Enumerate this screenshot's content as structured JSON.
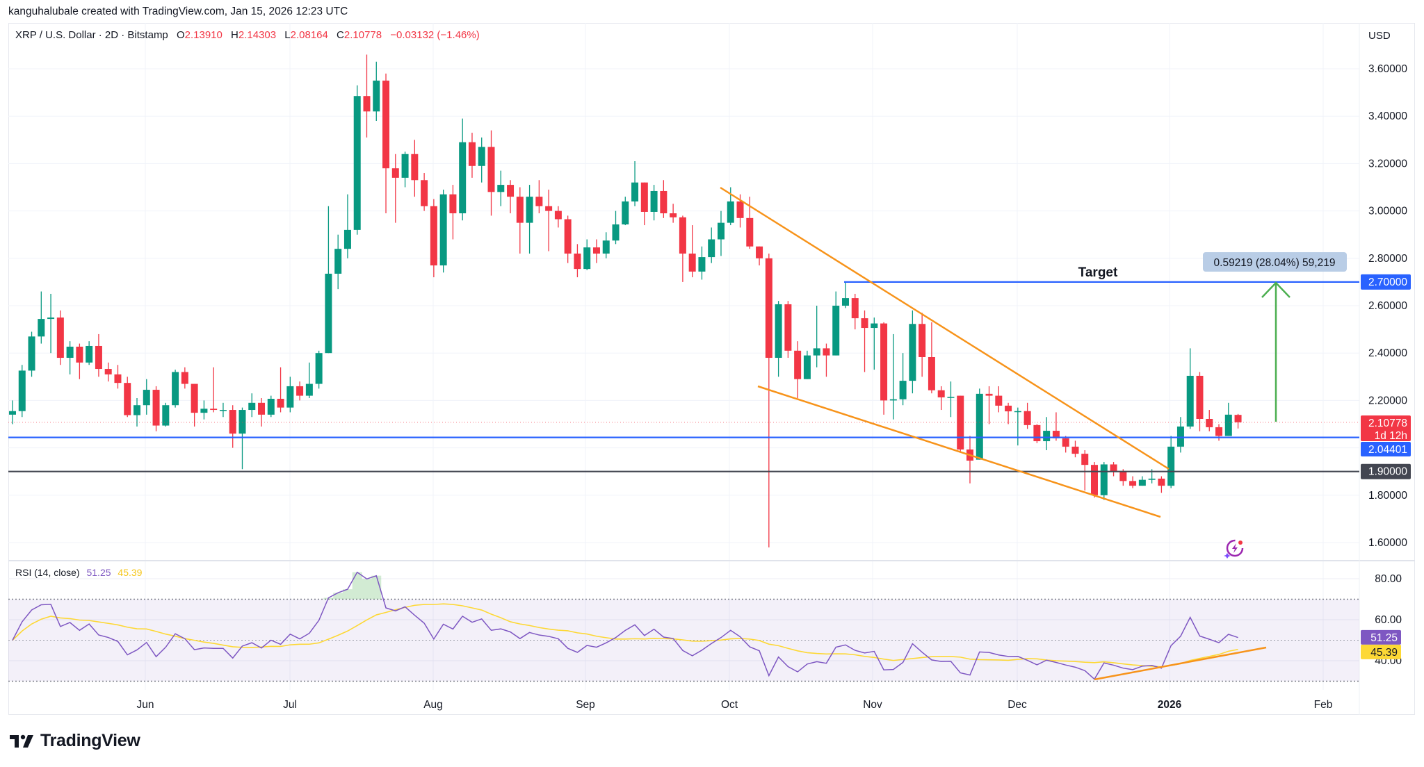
{
  "header": {
    "attribution": "kanguhalubale created with TradingView.com, Jan 15, 2026 12:23 UTC"
  },
  "legend": {
    "symbol": "XRP / U.S. Dollar · 2D · Bitstamp",
    "o_label": "O",
    "o": "2.13910",
    "h_label": "H",
    "h": "2.14303",
    "l_label": "L",
    "l": "2.08164",
    "c_label": "C",
    "c": "2.10778",
    "change": "−0.03132 (−1.46%)"
  },
  "currency": "USD",
  "price_axis": {
    "ticks": [
      "3.60000",
      "3.40000",
      "3.20000",
      "3.00000",
      "2.80000",
      "2.60000",
      "2.40000",
      "2.20000",
      "1.80000",
      "1.60000"
    ]
  },
  "price_tags": {
    "target": {
      "value": "2.70000",
      "color": "#2962ff"
    },
    "last": {
      "value": "2.10778",
      "countdown": "1d 12h",
      "color": "#f23645"
    },
    "support": {
      "value": "2.04401",
      "color": "#2962ff"
    },
    "floor": {
      "value": "1.90000",
      "color": "#434651"
    }
  },
  "annotations": {
    "target_label": "Target",
    "measure_label": "0.59219 (28.04%) 59,219",
    "trendline_color": "#f7931a",
    "arrow_color": "#4caf50"
  },
  "rsi": {
    "label": "RSI (14, close)",
    "value": "51.25",
    "ma_value": "45.39",
    "ticks": [
      "80.00",
      "60.00",
      "40.00"
    ],
    "line_color": "#7e57c2",
    "ma_color": "#fdd835"
  },
  "time_axis": {
    "labels": [
      "Jun",
      "Jul",
      "Aug",
      "Sep",
      "Oct",
      "Nov",
      "Dec",
      "2026",
      "Feb"
    ]
  },
  "logo": {
    "text": "TradingView"
  },
  "colors": {
    "up": "#089981",
    "down": "#f23645"
  },
  "chart_data": {
    "type": "candlestick",
    "interval": "2D",
    "ylim": [
      1.5,
      3.7
    ],
    "ohlc": [
      [
        2.14,
        2.2,
        2.1,
        2.155
      ],
      [
        2.155,
        2.35,
        2.13,
        2.326
      ],
      [
        2.326,
        2.49,
        2.3,
        2.47
      ],
      [
        2.47,
        2.66,
        2.44,
        2.544
      ],
      [
        2.544,
        2.65,
        2.4,
        2.55
      ],
      [
        2.55,
        2.58,
        2.35,
        2.38
      ],
      [
        2.38,
        2.45,
        2.31,
        2.427
      ],
      [
        2.427,
        2.44,
        2.29,
        2.36
      ],
      [
        2.36,
        2.45,
        2.35,
        2.43
      ],
      [
        2.43,
        2.48,
        2.3,
        2.333
      ],
      [
        2.333,
        2.36,
        2.28,
        2.31
      ],
      [
        2.31,
        2.35,
        2.25,
        2.274
      ],
      [
        2.274,
        2.3,
        2.13,
        2.138
      ],
      [
        2.138,
        2.21,
        2.09,
        2.18
      ],
      [
        2.18,
        2.29,
        2.14,
        2.245
      ],
      [
        2.245,
        2.26,
        2.07,
        2.094
      ],
      [
        2.094,
        2.19,
        2.09,
        2.18
      ],
      [
        2.18,
        2.33,
        2.17,
        2.32
      ],
      [
        2.32,
        2.34,
        2.25,
        2.27
      ],
      [
        2.27,
        2.27,
        2.09,
        2.148
      ],
      [
        2.148,
        2.2,
        2.12,
        2.165
      ],
      [
        2.165,
        2.34,
        2.15,
        2.16
      ],
      [
        2.16,
        2.19,
        2.13,
        2.16
      ],
      [
        2.16,
        2.18,
        2.0,
        2.06
      ],
      [
        2.06,
        2.17,
        1.91,
        2.16
      ],
      [
        2.16,
        2.23,
        2.13,
        2.19
      ],
      [
        2.19,
        2.21,
        2.09,
        2.14
      ],
      [
        2.14,
        2.22,
        2.13,
        2.207
      ],
      [
        2.207,
        2.34,
        2.15,
        2.17
      ],
      [
        2.17,
        2.3,
        2.15,
        2.26
      ],
      [
        2.26,
        2.28,
        2.2,
        2.22
      ],
      [
        2.22,
        2.36,
        2.21,
        2.27
      ],
      [
        2.27,
        2.41,
        2.25,
        2.4
      ],
      [
        2.4,
        3.02,
        2.4,
        2.735
      ],
      [
        2.735,
        2.9,
        2.67,
        2.84
      ],
      [
        2.84,
        3.07,
        2.8,
        2.92
      ],
      [
        2.92,
        3.53,
        2.9,
        3.485
      ],
      [
        3.485,
        3.66,
        3.31,
        3.42
      ],
      [
        3.42,
        3.63,
        3.38,
        3.55
      ],
      [
        3.55,
        3.58,
        2.99,
        3.18
      ],
      [
        3.18,
        3.24,
        2.95,
        3.14
      ],
      [
        3.14,
        3.25,
        3.1,
        3.24
      ],
      [
        3.24,
        3.3,
        3.06,
        3.13
      ],
      [
        3.13,
        3.16,
        3.0,
        3.02
      ],
      [
        3.02,
        3.05,
        2.72,
        2.77
      ],
      [
        2.77,
        3.09,
        2.74,
        3.07
      ],
      [
        3.07,
        3.11,
        2.88,
        2.99
      ],
      [
        2.99,
        3.39,
        2.96,
        3.29
      ],
      [
        3.29,
        3.33,
        3.14,
        3.19
      ],
      [
        3.19,
        3.31,
        3.12,
        3.27
      ],
      [
        3.27,
        3.34,
        2.98,
        3.08
      ],
      [
        3.08,
        3.17,
        3.02,
        3.11
      ],
      [
        3.11,
        3.13,
        2.99,
        3.06
      ],
      [
        3.06,
        3.1,
        2.82,
        2.95
      ],
      [
        2.95,
        3.11,
        2.82,
        3.06
      ],
      [
        3.06,
        3.13,
        2.99,
        3.02
      ],
      [
        3.02,
        3.09,
        2.83,
        3.0
      ],
      [
        3.0,
        3.02,
        2.93,
        2.965
      ],
      [
        2.965,
        2.98,
        2.78,
        2.82
      ],
      [
        2.82,
        2.86,
        2.72,
        2.755
      ],
      [
        2.755,
        2.88,
        2.75,
        2.846
      ],
      [
        2.846,
        2.88,
        2.78,
        2.82
      ],
      [
        2.82,
        2.91,
        2.8,
        2.875
      ],
      [
        2.875,
        3.0,
        2.86,
        2.943
      ],
      [
        2.943,
        3.06,
        2.94,
        3.04
      ],
      [
        3.04,
        3.21,
        3.02,
        3.12
      ],
      [
        3.12,
        3.12,
        2.94,
        2.996
      ],
      [
        2.996,
        3.11,
        2.96,
        3.084
      ],
      [
        3.084,
        3.13,
        2.97,
        2.99
      ],
      [
        2.99,
        3.03,
        2.95,
        2.973
      ],
      [
        2.973,
        2.98,
        2.7,
        2.82
      ],
      [
        2.82,
        2.94,
        2.72,
        2.744
      ],
      [
        2.744,
        2.85,
        2.71,
        2.805
      ],
      [
        2.805,
        2.93,
        2.78,
        2.88
      ],
      [
        2.88,
        3.0,
        2.81,
        2.95
      ],
      [
        2.95,
        3.1,
        2.94,
        3.04
      ],
      [
        3.04,
        3.07,
        2.93,
        2.97
      ],
      [
        2.97,
        3.06,
        2.84,
        2.85
      ],
      [
        2.85,
        2.85,
        2.77,
        2.8
      ],
      [
        2.8,
        2.82,
        1.58,
        2.38
      ],
      [
        2.38,
        2.62,
        2.3,
        2.606
      ],
      [
        2.606,
        2.62,
        2.38,
        2.41
      ],
      [
        2.41,
        2.45,
        2.21,
        2.29
      ],
      [
        2.29,
        2.41,
        2.29,
        2.39
      ],
      [
        2.39,
        2.6,
        2.34,
        2.42
      ],
      [
        2.42,
        2.44,
        2.3,
        2.39
      ],
      [
        2.39,
        2.66,
        2.39,
        2.6
      ],
      [
        2.6,
        2.7,
        2.59,
        2.632
      ],
      [
        2.632,
        2.65,
        2.5,
        2.547
      ],
      [
        2.547,
        2.58,
        2.32,
        2.506
      ],
      [
        2.506,
        2.55,
        2.33,
        2.525
      ],
      [
        2.525,
        2.53,
        2.14,
        2.2
      ],
      [
        2.2,
        2.48,
        2.12,
        2.205
      ],
      [
        2.205,
        2.4,
        2.18,
        2.283
      ],
      [
        2.283,
        2.58,
        2.23,
        2.523
      ],
      [
        2.523,
        2.57,
        2.3,
        2.383
      ],
      [
        2.383,
        2.53,
        2.23,
        2.243
      ],
      [
        2.243,
        2.26,
        2.16,
        2.213
      ],
      [
        2.213,
        2.28,
        2.13,
        2.215
      ],
      [
        2.22,
        2.22,
        1.98,
        1.993
      ],
      [
        1.993,
        2.05,
        1.85,
        1.946
      ],
      [
        1.95,
        2.25,
        1.95,
        2.228
      ],
      [
        2.228,
        2.26,
        2.1,
        2.22
      ],
      [
        2.22,
        2.26,
        2.15,
        2.178
      ],
      [
        2.178,
        2.19,
        2.1,
        2.154
      ],
      [
        2.154,
        2.17,
        2.01,
        2.155
      ],
      [
        2.155,
        2.19,
        2.08,
        2.096
      ],
      [
        2.096,
        2.1,
        2.02,
        2.028
      ],
      [
        2.028,
        2.13,
        1.99,
        2.072
      ],
      [
        2.072,
        2.15,
        2.03,
        2.04
      ],
      [
        2.04,
        2.05,
        1.98,
        2.005
      ],
      [
        2.005,
        2.03,
        1.96,
        1.975
      ],
      [
        1.975,
        1.99,
        1.82,
        1.928
      ],
      [
        1.928,
        1.94,
        1.79,
        1.8
      ],
      [
        1.8,
        1.94,
        1.78,
        1.93
      ],
      [
        1.93,
        1.94,
        1.88,
        1.9
      ],
      [
        1.9,
        1.91,
        1.84,
        1.86
      ],
      [
        1.86,
        1.88,
        1.83,
        1.84
      ],
      [
        1.84,
        1.88,
        1.84,
        1.865
      ],
      [
        1.865,
        1.91,
        1.85,
        1.87
      ],
      [
        1.87,
        1.88,
        1.81,
        1.84
      ],
      [
        1.84,
        2.05,
        1.83,
        2.005
      ],
      [
        2.005,
        2.13,
        1.98,
        2.09
      ],
      [
        2.09,
        2.42,
        2.08,
        2.304
      ],
      [
        2.304,
        2.32,
        2.07,
        2.122
      ],
      [
        2.122,
        2.16,
        2.07,
        2.087
      ],
      [
        2.087,
        2.1,
        2.03,
        2.05
      ],
      [
        2.05,
        2.19,
        2.05,
        2.14
      ],
      [
        2.1391,
        2.14303,
        2.08164,
        2.10778
      ]
    ]
  }
}
